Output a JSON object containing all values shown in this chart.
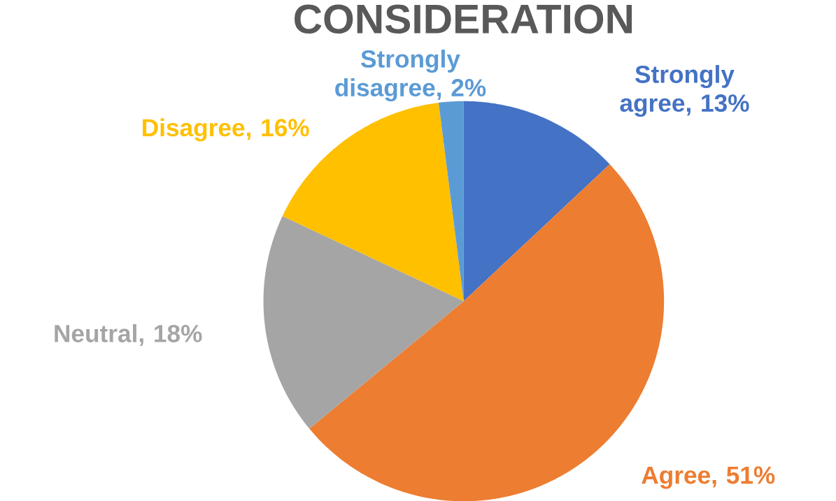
{
  "chart_data": {
    "type": "pie",
    "title": "CONSIDERATION",
    "categories": [
      "Strongly agree",
      "Agree",
      "Neutral",
      "Disagree",
      "Strongly disagree"
    ],
    "values": [
      13,
      51,
      18,
      16,
      2
    ],
    "value_labels": [
      ", 13%",
      ", 51%",
      ", 18%",
      ", 16%",
      ", 2%"
    ],
    "colors": [
      "#4472c4",
      "#ed7d31",
      "#a5a5a5",
      "#ffc000",
      "#5b9bd5"
    ]
  }
}
